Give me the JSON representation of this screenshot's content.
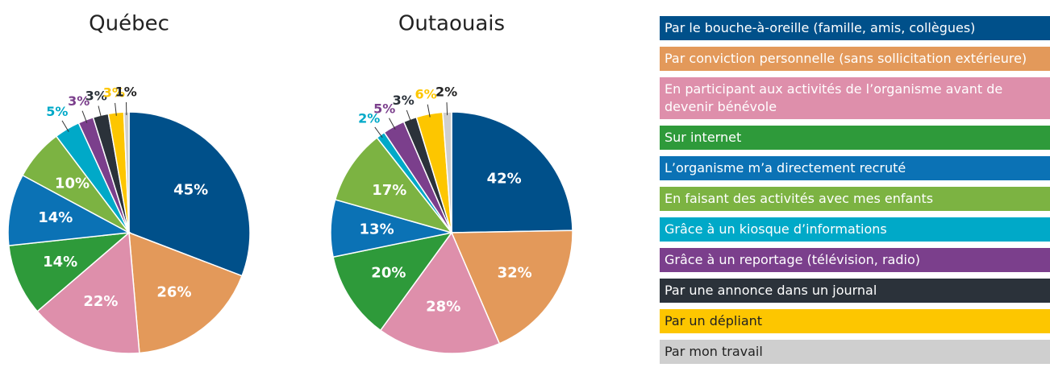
{
  "chart_data": [
    {
      "type": "pie",
      "title": "Québec",
      "categories": [
        "Par le bouche-à-oreille (famille, amis, collègues)",
        "Par conviction personnelle (sans sollicitation extérieure)",
        "En participant aux activités de l’organisme avant de devenir bénévole",
        "Sur internet",
        "L’organisme m’a directement recruté",
        "En faisant des activités avec mes enfants",
        "Grâce à un kiosque d’informations",
        "Grâce à un reportage (télévision, radio)",
        "Par une annonce dans un journal",
        "Par un dépliant",
        "Par mon travail"
      ],
      "values": [
        45,
        26,
        22,
        14,
        14,
        10,
        5,
        3,
        3,
        3,
        1
      ],
      "value_labels": [
        "45%",
        "26%",
        "22%",
        "14%",
        "14%",
        "10%",
        "5%",
        "3%",
        "3%",
        "3%",
        "1%"
      ],
      "colors": [
        "#00508a",
        "#e3995a",
        "#de8fab",
        "#2e9a3a",
        "#0b72b5",
        "#7cb342",
        "#00a9c8",
        "#7b3f8c",
        "#2b323a",
        "#fdc600",
        "#cfcfcf"
      ]
    },
    {
      "type": "pie",
      "title": "Outaouais",
      "categories": [
        "Par le bouche-à-oreille (famille, amis, collègues)",
        "Par conviction personnelle (sans sollicitation extérieure)",
        "En participant aux activités de l’organisme avant de devenir bénévole",
        "Sur internet",
        "L’organisme m’a directement recruté",
        "En faisant des activités avec mes enfants",
        "Grâce à un kiosque d’informations",
        "Grâce à un reportage (télévision, radio)",
        "Par une annonce dans un journal",
        "Par un dépliant",
        "Par mon travail"
      ],
      "values": [
        42,
        32,
        28,
        20,
        13,
        17,
        2,
        5,
        3,
        6,
        2
      ],
      "value_labels": [
        "42%",
        "32%",
        "28%",
        "20%",
        "13%",
        "17%",
        "2%",
        "5%",
        "3%",
        "6%",
        "2%"
      ],
      "colors": [
        "#00508a",
        "#e3995a",
        "#de8fab",
        "#2e9a3a",
        "#0b72b5",
        "#7cb342",
        "#00a9c8",
        "#7b3f8c",
        "#2b323a",
        "#fdc600",
        "#cfcfcf"
      ]
    }
  ]
}
